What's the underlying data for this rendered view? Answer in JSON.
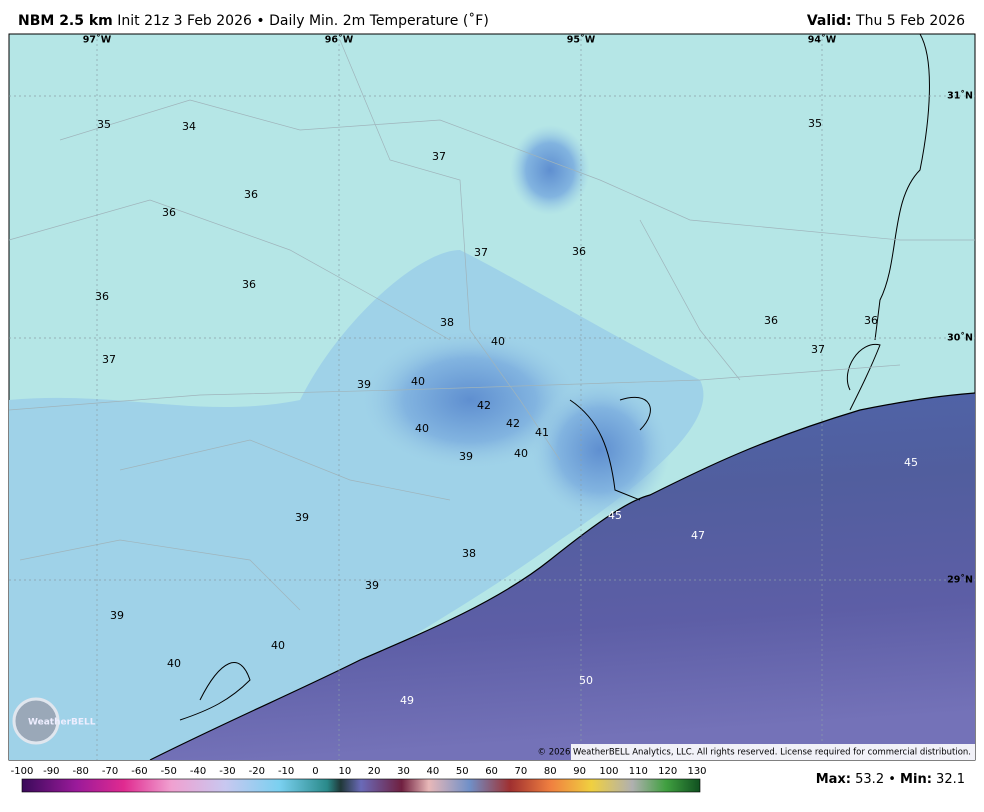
{
  "header": {
    "model": "NBM 2.5 km",
    "init": "Init 21z 3 Feb 2026",
    "separator": "•",
    "product": "Daily Min. 2m Temperature (˚F)",
    "valid_label": "Valid:",
    "valid_date": "Thu 5 Feb 2026"
  },
  "map": {
    "longitude_labels": [
      "97˚W",
      "96˚W",
      "95˚W",
      "94˚W"
    ],
    "latitude_labels": [
      "31˚N",
      "30˚N",
      "29˚N"
    ],
    "station_values": [
      35,
      34,
      37,
      35,
      36,
      36,
      37,
      36,
      36,
      36,
      38,
      40,
      36,
      36,
      37,
      37,
      39,
      40,
      42,
      42,
      41,
      40,
      39,
      40,
      45,
      45,
      47,
      39,
      38,
      39,
      39,
      40,
      40,
      50,
      49
    ]
  },
  "logo": "WeatherBELL",
  "copyright": "© 2026 WeatherBELL Analytics, LLC. All rights reserved. License required for commercial distribution.",
  "colorbar": {
    "ticks": [
      -100,
      -90,
      -80,
      -70,
      -60,
      -50,
      -40,
      -30,
      -20,
      -10,
      0,
      10,
      20,
      30,
      40,
      50,
      60,
      70,
      80,
      90,
      100,
      110,
      120,
      130
    ]
  },
  "footer": {
    "max_label": "Max:",
    "max": 53.2,
    "separator": "•",
    "min_label": "Min:",
    "min": 32.1
  }
}
